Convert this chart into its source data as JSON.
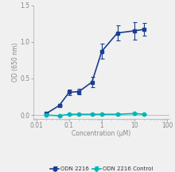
{
  "odn2216_x": [
    0.02,
    0.05,
    0.1,
    0.2,
    0.5,
    1,
    3,
    10,
    20
  ],
  "odn2216_y": [
    0.02,
    0.13,
    0.31,
    0.32,
    0.45,
    0.87,
    1.12,
    1.15,
    1.17
  ],
  "odn2216_yerr": [
    0.01,
    0.015,
    0.04,
    0.04,
    0.07,
    0.1,
    0.1,
    0.12,
    0.09
  ],
  "ctrl_x": [
    0.02,
    0.05,
    0.1,
    0.2,
    0.5,
    1,
    3,
    10,
    20
  ],
  "ctrl_y": [
    0.0,
    -0.01,
    0.01,
    0.01,
    0.01,
    0.01,
    0.01,
    0.02,
    0.01
  ],
  "ctrl_yerr": [
    0.004,
    0.004,
    0.004,
    0.004,
    0.004,
    0.004,
    0.004,
    0.004,
    0.004
  ],
  "odn2216_color": "#1a3e8f",
  "ctrl_color": "#00b5b5",
  "xlabel": "Concentration (μM)",
  "ylabel": "OD (650 nm)",
  "ylim": [
    -0.05,
    1.5
  ],
  "xlim": [
    0.008,
    120
  ],
  "legend_labels": [
    "ODN 2216",
    "ODN 2216 Control"
  ],
  "xticks": [
    0.01,
    0.1,
    1,
    10,
    100
  ],
  "xtick_labels": [
    "0.01",
    "0.1",
    "1",
    "10",
    "100"
  ],
  "yticks": [
    0.0,
    0.5,
    1.0,
    1.5
  ],
  "background_color": "#f0f0f0",
  "spine_color": "#aaaaaa",
  "tick_color": "#888888"
}
